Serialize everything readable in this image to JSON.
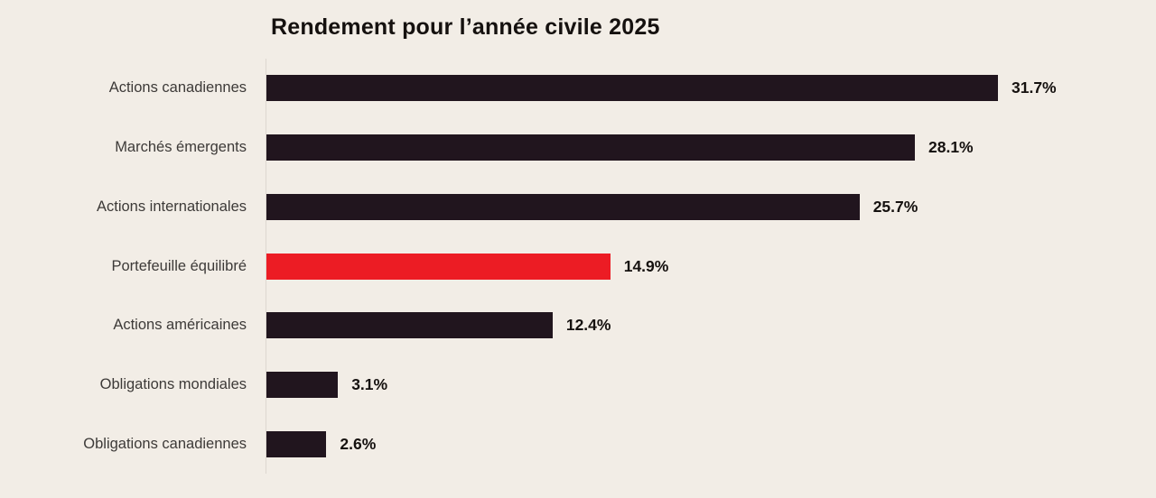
{
  "page": {
    "background": "#f2ede6"
  },
  "chart_data": {
    "type": "bar",
    "orientation": "horizontal",
    "title": "Rendement pour l’année civile 2025",
    "categories": [
      "Actions canadiennes",
      "Marchés émergents",
      "Actions internationales",
      "Portefeuille équilibré",
      "Actions américaines",
      "Obligations mondiales",
      "Obligations canadiennes"
    ],
    "values": [
      31.7,
      28.1,
      25.7,
      14.9,
      12.4,
      3.1,
      2.6
    ],
    "value_labels": [
      "31.7%",
      "28.1%",
      "25.7%",
      "14.9%",
      "12.4%",
      "3.1%",
      "2.6%"
    ],
    "highlighted_category": "Portefeuille équilibré",
    "highlighted_index": 3,
    "xlabel": "",
    "ylabel": "",
    "xlim": [
      0,
      31.7
    ],
    "grid": false,
    "legend": false,
    "colors": {
      "bar_default": "#21151e",
      "bar_highlight": "#ec1c24",
      "title_text": "#15110f",
      "category_text": "#3d3a38",
      "value_text": "#15110f",
      "axis_line": "#ddd7d0"
    }
  }
}
